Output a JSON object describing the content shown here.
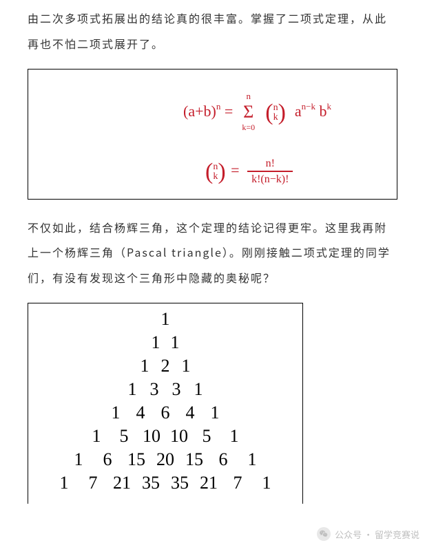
{
  "paragraph1": "由二次多项式拓展出的结论真的很丰富。掌握了二项式定理，从此再也不怕二项式展开了。",
  "paragraph2": "不仅如此，结合杨辉三角，这个定理的结论记得更牢。这里我再附上一个杨辉三角（Pascal triangle）。刚刚接触二项式定理的同学们，有没有发现这个三角形中隐藏的奥秘呢？",
  "formula": {
    "line1_left": "(a+b)",
    "line1_exp": "n",
    "line1_eq": " = ",
    "sigma_top": "n",
    "sigma_bottom": "k=0",
    "binom_top": "n",
    "binom_bottom": "k",
    "term_a": "a",
    "term_a_exp": "n−k",
    "term_b": "b",
    "term_b_exp": "k",
    "line2_eq": " = ",
    "frac_num": "n!",
    "frac_den": "k!(n−k)!"
  },
  "triangle": {
    "rows": [
      [
        "1"
      ],
      [
        "1",
        "1"
      ],
      [
        "1",
        "2",
        "1"
      ],
      [
        "1",
        "3",
        "3",
        "1"
      ],
      [
        "1",
        "4",
        "6",
        "4",
        "1"
      ],
      [
        "1",
        "5",
        "10",
        "10",
        "5",
        "1"
      ],
      [
        "1",
        "6",
        "15",
        "20",
        "15",
        "6",
        "1"
      ],
      [
        "1",
        "7",
        "21",
        "35",
        "35",
        "21",
        "7",
        "1"
      ]
    ]
  },
  "watermark": {
    "label": "公众号 · 留学竞赛说"
  },
  "colors": {
    "text": "#333333",
    "handwriting": "#c41d2a",
    "border": "#000000",
    "background": "#ffffff",
    "watermark": "#bfbfbf"
  }
}
